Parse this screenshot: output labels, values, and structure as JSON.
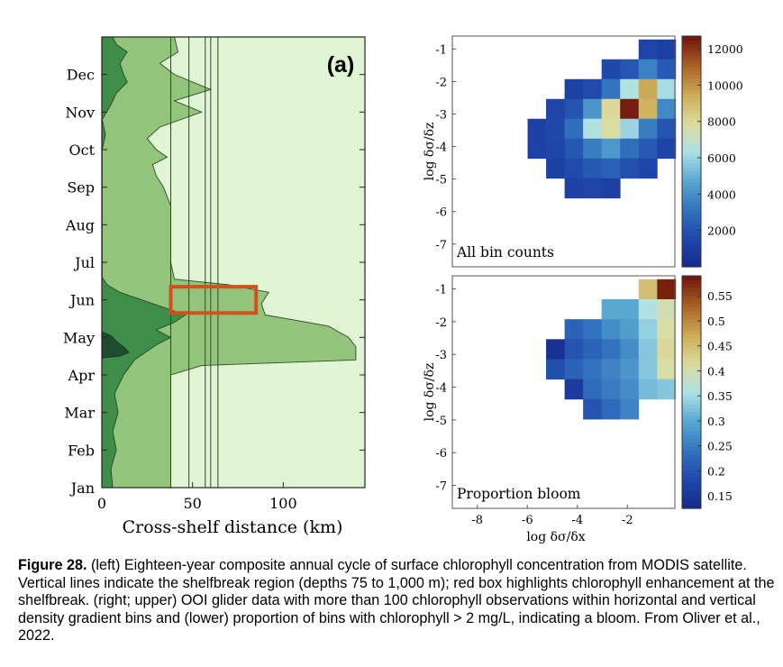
{
  "colors": {
    "bg_light": "#dff5d4",
    "band_mid": "#93c47c",
    "band_dark": "#3e8e4a",
    "band_darkest": "#1f4d2b",
    "red_box": "#d1501c",
    "axis": "#333333"
  },
  "chart_data": [
    {
      "id": "a",
      "type": "heatmap",
      "panel_label": "(a)",
      "xlabel": "Cross-shelf distance (km)",
      "ylabel": "",
      "xlim": [
        0,
        145
      ],
      "xticks": [
        0,
        50,
        100
      ],
      "months": [
        "Jan",
        "Feb",
        "Mar",
        "Apr",
        "May",
        "Jun",
        "Jul",
        "Aug",
        "Sep",
        "Oct",
        "Nov",
        "Dec"
      ],
      "shelfbreak_lines_km": [
        38,
        48,
        57,
        60,
        64
      ],
      "bloom_box": {
        "x": [
          38,
          85
        ],
        "month": [
          4.65,
          5.35
        ]
      },
      "edge_light_km": [
        [
          0.0,
          38
        ],
        [
          0.5,
          38
        ],
        [
          1.0,
          38
        ],
        [
          1.5,
          38
        ],
        [
          2.0,
          38
        ],
        [
          2.5,
          38
        ],
        [
          3.0,
          38
        ],
        [
          3.25,
          55
        ],
        [
          3.4,
          140
        ],
        [
          3.75,
          140
        ],
        [
          4.0,
          136
        ],
        [
          4.3,
          125
        ],
        [
          4.6,
          90
        ],
        [
          4.9,
          88
        ],
        [
          5.2,
          92
        ],
        [
          5.4,
          70
        ],
        [
          5.55,
          40
        ],
        [
          6.0,
          38
        ],
        [
          6.5,
          38
        ],
        [
          7.0,
          38
        ],
        [
          7.5,
          38
        ],
        [
          8.0,
          34
        ],
        [
          8.3,
          30
        ],
        [
          8.6,
          28
        ],
        [
          8.8,
          36
        ],
        [
          9.0,
          30
        ],
        [
          9.3,
          25
        ],
        [
          9.6,
          32
        ],
        [
          10.0,
          55
        ],
        [
          10.3,
          40
        ],
        [
          10.6,
          60
        ],
        [
          11.0,
          40
        ],
        [
          11.3,
          32
        ],
        [
          11.6,
          42
        ],
        [
          12.0,
          40
        ]
      ],
      "edge_dark_km": [
        [
          0.0,
          6
        ],
        [
          0.5,
          5
        ],
        [
          1.0,
          8
        ],
        [
          1.5,
          6
        ],
        [
          2.0,
          9
        ],
        [
          2.5,
          7
        ],
        [
          3.0,
          12
        ],
        [
          3.4,
          18
        ],
        [
          3.8,
          30
        ],
        [
          4.0,
          38
        ],
        [
          4.2,
          30
        ],
        [
          4.4,
          40
        ],
        [
          4.6,
          46
        ],
        [
          4.8,
          34
        ],
        [
          5.0,
          22
        ],
        [
          5.2,
          10
        ],
        [
          5.4,
          3
        ],
        [
          5.6,
          0
        ],
        [
          9.0,
          0
        ],
        [
          9.4,
          2
        ],
        [
          9.8,
          0
        ],
        [
          10.2,
          5
        ],
        [
          10.5,
          8
        ],
        [
          10.8,
          14
        ],
        [
          11.0,
          12
        ],
        [
          11.3,
          10
        ],
        [
          11.6,
          14
        ],
        [
          11.8,
          8
        ],
        [
          12.0,
          6
        ]
      ],
      "edge_darkest_km": [
        [
          3.45,
          0
        ],
        [
          3.5,
          10
        ],
        [
          3.6,
          15
        ],
        [
          3.75,
          12
        ],
        [
          3.9,
          8
        ],
        [
          4.05,
          5
        ],
        [
          4.15,
          0
        ]
      ]
    },
    {
      "id": "counts",
      "type": "heatmap",
      "label": "All bin counts",
      "xlabel": "",
      "ylabel": "log δσ/δz",
      "xlim": [
        -9,
        -0.1
      ],
      "ylim": [
        -7.7,
        -0.6
      ],
      "yticks": [
        -1,
        -2,
        -3,
        -4,
        -5,
        -6,
        -7
      ],
      "colorbar": {
        "min": 0,
        "max": 12700,
        "ticks": [
          2000,
          4000,
          6000,
          8000,
          10000,
          12000
        ]
      },
      "cell_size": [
        0.74,
        0.61
      ],
      "x_centers": [
        -5.62,
        -4.88,
        -4.14,
        -3.4,
        -2.66,
        -1.92,
        -1.18,
        -0.44
      ],
      "y_centers": [
        -1.01,
        -1.62,
        -2.23,
        -2.84,
        -3.45,
        -4.06,
        -4.67,
        -5.28
      ],
      "cells": [
        {
          "x": -1.18,
          "y": -1.01,
          "v": 1400
        },
        {
          "x": -0.44,
          "y": -1.01,
          "v": 1200
        },
        {
          "x": -2.66,
          "y": -1.62,
          "v": 1600
        },
        {
          "x": -1.92,
          "y": -1.62,
          "v": 2100
        },
        {
          "x": -1.18,
          "y": -1.62,
          "v": 3600
        },
        {
          "x": -0.44,
          "y": -1.62,
          "v": 2300
        },
        {
          "x": -4.14,
          "y": -2.23,
          "v": 1300
        },
        {
          "x": -3.4,
          "y": -2.23,
          "v": 1700
        },
        {
          "x": -2.66,
          "y": -2.23,
          "v": 3200
        },
        {
          "x": -1.92,
          "y": -2.23,
          "v": 6500
        },
        {
          "x": -1.18,
          "y": -2.23,
          "v": 9500
        },
        {
          "x": -0.44,
          "y": -2.23,
          "v": 6200
        },
        {
          "x": -4.88,
          "y": -2.84,
          "v": 1400
        },
        {
          "x": -4.14,
          "y": -2.84,
          "v": 2000
        },
        {
          "x": -3.4,
          "y": -2.84,
          "v": 4200
        },
        {
          "x": -2.66,
          "y": -2.84,
          "v": 8000
        },
        {
          "x": -1.92,
          "y": -2.84,
          "v": 12500
        },
        {
          "x": -1.18,
          "y": -2.84,
          "v": 9200
        },
        {
          "x": -0.44,
          "y": -2.84,
          "v": 3800
        },
        {
          "x": -5.62,
          "y": -3.45,
          "v": 1200
        },
        {
          "x": -4.88,
          "y": -3.45,
          "v": 1600
        },
        {
          "x": -4.14,
          "y": -3.45,
          "v": 3000
        },
        {
          "x": -3.4,
          "y": -3.45,
          "v": 6500
        },
        {
          "x": -2.66,
          "y": -3.45,
          "v": 7800
        },
        {
          "x": -1.92,
          "y": -3.45,
          "v": 6000
        },
        {
          "x": -1.18,
          "y": -3.45,
          "v": 3500
        },
        {
          "x": -0.44,
          "y": -3.45,
          "v": 2000
        },
        {
          "x": -5.62,
          "y": -4.06,
          "v": 1300
        },
        {
          "x": -4.88,
          "y": -4.06,
          "v": 1500
        },
        {
          "x": -4.14,
          "y": -4.06,
          "v": 2200
        },
        {
          "x": -3.4,
          "y": -4.06,
          "v": 3500
        },
        {
          "x": -2.66,
          "y": -4.06,
          "v": 4300
        },
        {
          "x": -1.92,
          "y": -4.06,
          "v": 3000
        },
        {
          "x": -1.18,
          "y": -4.06,
          "v": 2300
        },
        {
          "x": -0.44,
          "y": -4.06,
          "v": 1400
        },
        {
          "x": -4.88,
          "y": -4.67,
          "v": 1200
        },
        {
          "x": -4.14,
          "y": -4.67,
          "v": 1700
        },
        {
          "x": -3.4,
          "y": -4.67,
          "v": 2300
        },
        {
          "x": -2.66,
          "y": -4.67,
          "v": 2500
        },
        {
          "x": -1.92,
          "y": -4.67,
          "v": 1900
        },
        {
          "x": -1.18,
          "y": -4.67,
          "v": 1500
        },
        {
          "x": -4.14,
          "y": -5.28,
          "v": 1300
        },
        {
          "x": -3.4,
          "y": -5.28,
          "v": 1400
        },
        {
          "x": -2.66,
          "y": -5.28,
          "v": 1200
        }
      ]
    },
    {
      "id": "bloom",
      "type": "heatmap",
      "label": "Proportion bloom",
      "xlabel": "log δσ/δx",
      "ylabel": "log δσ/δz",
      "xlim": [
        -9,
        -0.1
      ],
      "ylim": [
        -7.7,
        -0.6
      ],
      "xticks": [
        -8,
        -6,
        -4,
        -2
      ],
      "yticks": [
        -1,
        -2,
        -3,
        -4,
        -5,
        -6,
        -7
      ],
      "colorbar": {
        "min": 0.125,
        "max": 0.59,
        "ticks": [
          0.15,
          0.2,
          0.25,
          0.3,
          0.35,
          0.4,
          0.45,
          0.5,
          0.55
        ]
      },
      "cell_size": [
        0.74,
        0.61
      ],
      "cells": [
        {
          "x": -1.18,
          "y": -1.01,
          "v": 0.45
        },
        {
          "x": -0.44,
          "y": -1.01,
          "v": 0.58
        },
        {
          "x": -2.66,
          "y": -1.62,
          "v": 0.3
        },
        {
          "x": -1.92,
          "y": -1.62,
          "v": 0.3
        },
        {
          "x": -1.18,
          "y": -1.62,
          "v": 0.36
        },
        {
          "x": -0.44,
          "y": -1.62,
          "v": 0.4
        },
        {
          "x": -4.14,
          "y": -2.23,
          "v": 0.22
        },
        {
          "x": -3.4,
          "y": -2.23,
          "v": 0.24
        },
        {
          "x": -2.66,
          "y": -2.23,
          "v": 0.27
        },
        {
          "x": -1.92,
          "y": -2.23,
          "v": 0.29
        },
        {
          "x": -1.18,
          "y": -2.23,
          "v": 0.34
        },
        {
          "x": -0.44,
          "y": -2.23,
          "v": 0.41
        },
        {
          "x": -4.88,
          "y": -2.84,
          "v": 0.14
        },
        {
          "x": -4.14,
          "y": -2.84,
          "v": 0.2
        },
        {
          "x": -3.4,
          "y": -2.84,
          "v": 0.22
        },
        {
          "x": -2.66,
          "y": -2.84,
          "v": 0.24
        },
        {
          "x": -1.92,
          "y": -2.84,
          "v": 0.27
        },
        {
          "x": -1.18,
          "y": -2.84,
          "v": 0.33
        },
        {
          "x": -0.44,
          "y": -2.84,
          "v": 0.42
        },
        {
          "x": -4.88,
          "y": -3.45,
          "v": 0.19
        },
        {
          "x": -4.14,
          "y": -3.45,
          "v": 0.22
        },
        {
          "x": -3.4,
          "y": -3.45,
          "v": 0.24
        },
        {
          "x": -2.66,
          "y": -3.45,
          "v": 0.26
        },
        {
          "x": -1.92,
          "y": -3.45,
          "v": 0.28
        },
        {
          "x": -1.18,
          "y": -3.45,
          "v": 0.33
        },
        {
          "x": -0.44,
          "y": -3.45,
          "v": 0.41
        },
        {
          "x": -4.14,
          "y": -4.06,
          "v": 0.16
        },
        {
          "x": -3.4,
          "y": -4.06,
          "v": 0.23
        },
        {
          "x": -2.66,
          "y": -4.06,
          "v": 0.25
        },
        {
          "x": -1.92,
          "y": -4.06,
          "v": 0.27
        },
        {
          "x": -1.18,
          "y": -4.06,
          "v": 0.32
        },
        {
          "x": -0.44,
          "y": -4.06,
          "v": 0.33
        },
        {
          "x": -3.4,
          "y": -4.67,
          "v": 0.2
        },
        {
          "x": -2.66,
          "y": -4.67,
          "v": 0.23
        },
        {
          "x": -1.92,
          "y": -4.67,
          "v": 0.26
        }
      ]
    }
  ],
  "caption": {
    "label": "Figure 28.",
    "text": " (left) Eighteen-year composite annual cycle of surface chlorophyll concentration from MODIS satellite. Vertical lines indicate the shelfbreak region (depths 75 to 1,000 m); red box highlights chlorophyll enhancement at the shelfbreak. (right; upper) OOI glider data with more than 100 chlorophyll observations within horizontal and vertical density gradient bins and (lower) proportion of bins with chlorophyll > 2 mg/L, indicating a bloom. From Oliver et al., 2022."
  }
}
